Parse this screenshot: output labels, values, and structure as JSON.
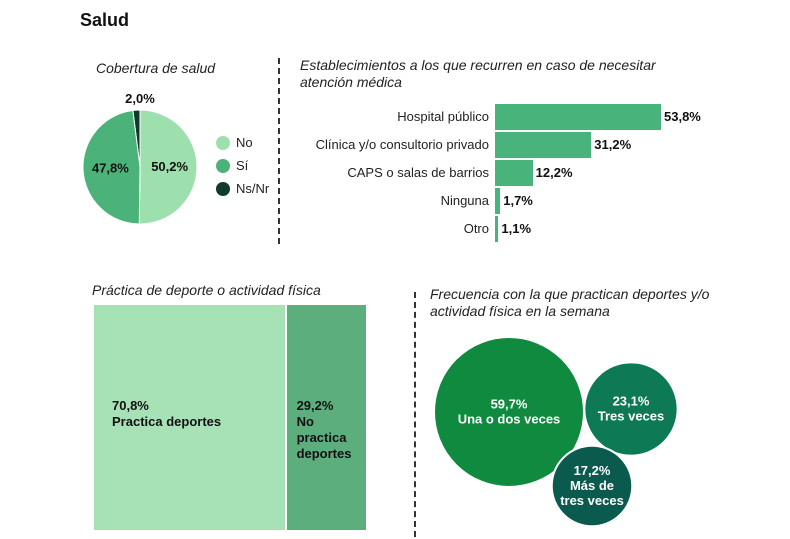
{
  "page": {
    "title": "Salud"
  },
  "chart_data": [
    {
      "type": "pie",
      "title": "Cobertura de salud",
      "slices": [
        {
          "name": "No",
          "value": 50.2,
          "label": "50,2%",
          "color": "#9EDFAE"
        },
        {
          "name": "Sí",
          "value": 47.8,
          "label": "47,8%",
          "color": "#4BB27A"
        },
        {
          "name": "Ns/Nr",
          "value": 2.0,
          "label": "2,0%",
          "color": "#0E3B2A"
        }
      ],
      "legend": [
        "No",
        "Sí",
        "Ns/Nr"
      ]
    },
    {
      "type": "bar",
      "orientation": "horizontal",
      "title": "Establecimientos a los que recurren en caso de necesitar atención médica",
      "categories": [
        "Hospital público",
        "Clínica y/o consultorio privado",
        "CAPS o salas de barrios",
        "Ninguna",
        "Otro"
      ],
      "values": [
        53.8,
        31.2,
        12.2,
        1.7,
        1.1
      ],
      "value_labels": [
        "53,8%",
        "31,2%",
        "12,2%",
        "1,7%",
        "1,1%"
      ],
      "color": "#48B37A",
      "xlim": [
        0,
        53.8
      ]
    },
    {
      "type": "treemap",
      "title": "Práctica de deporte o actividad física",
      "items": [
        {
          "value": 70.8,
          "label": "70,8%",
          "lines": [
            "Practica deportes"
          ],
          "color": "#A6E2B6"
        },
        {
          "value": 29.2,
          "label": "29,2%",
          "lines": [
            "No",
            "practica",
            "deportes"
          ],
          "color": "#5CAF7D"
        }
      ]
    },
    {
      "type": "bubble",
      "title": "Frecuencia con la que practican deportes y/o actividad física en la semana",
      "items": [
        {
          "value": 59.7,
          "label": "59,7%",
          "lines": [
            "Una o dos veces"
          ],
          "color": "#0F8A3E"
        },
        {
          "value": 23.1,
          "label": "23,1%",
          "lines": [
            "Tres veces"
          ],
          "color": "#0D7A55"
        },
        {
          "value": 17.2,
          "label": "17,2%",
          "lines": [
            "Más de",
            "tres veces"
          ],
          "color": "#0A5A4E"
        }
      ]
    }
  ]
}
